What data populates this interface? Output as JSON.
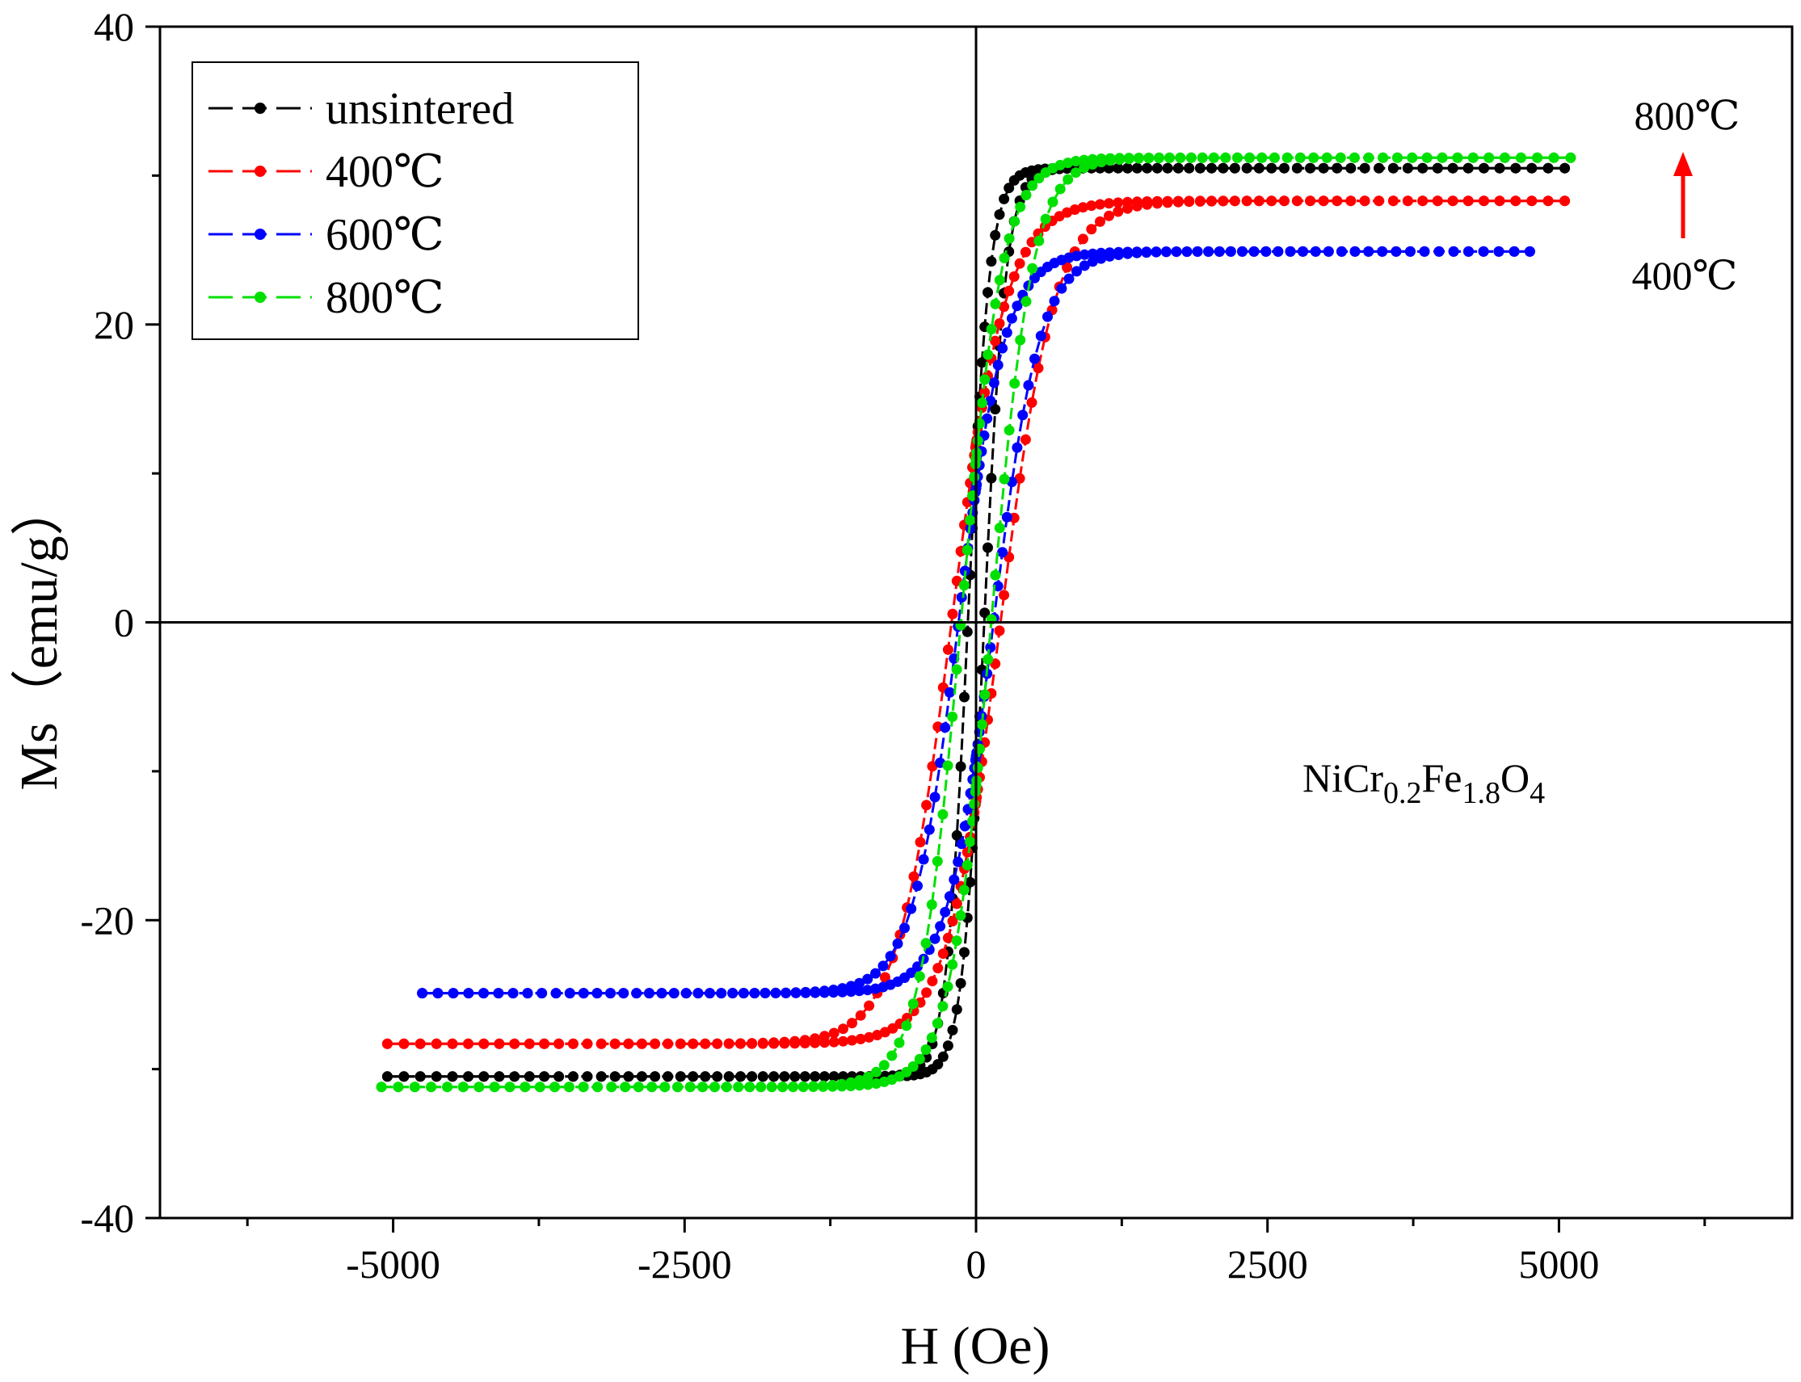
{
  "chart_data": {
    "type": "scatter",
    "xlabel": "H (Oe)",
    "ylabel": "Ms（emu/g）",
    "xlim": [
      -7000,
      7000
    ],
    "ylim": [
      -40,
      40
    ],
    "xticks": [
      -5000,
      -2500,
      0,
      2500,
      5000
    ],
    "xtick_labels": [
      "-5000",
      "-2500",
      "0",
      "2500",
      "5000"
    ],
    "yticks": [
      -40,
      -20,
      0,
      20,
      40
    ],
    "ytick_labels": [
      "-40",
      "-20",
      "0",
      "20",
      "40"
    ],
    "grid": false,
    "zero_lines": true,
    "legend_position": "top-left",
    "series": [
      {
        "name": "unsintered",
        "color": "#000000",
        "hmax": 5050,
        "ms": 30.5,
        "hc": 70,
        "mr": 11
      },
      {
        "name": "400℃",
        "color": "#ff0000",
        "hmax": 5050,
        "ms": 28.3,
        "hc": 210,
        "mr": 12
      },
      {
        "name": "600℃",
        "color": "#0000ff",
        "hmax": 4750,
        "ms": 24.9,
        "hc": 150,
        "mr": 9
      },
      {
        "name": "800℃",
        "color": "#00e000",
        "hmax": 5100,
        "ms": 31.2,
        "hc": 130,
        "mr": 11
      }
    ],
    "annotations": {
      "compound": {
        "main": [
          "NiCr",
          "Fe",
          "O"
        ],
        "subs": [
          "0.2",
          "1.8",
          "4"
        ]
      },
      "arrow_top": "800℃",
      "arrow_bottom": "400℃",
      "arrow_color": "#ff0000"
    }
  }
}
